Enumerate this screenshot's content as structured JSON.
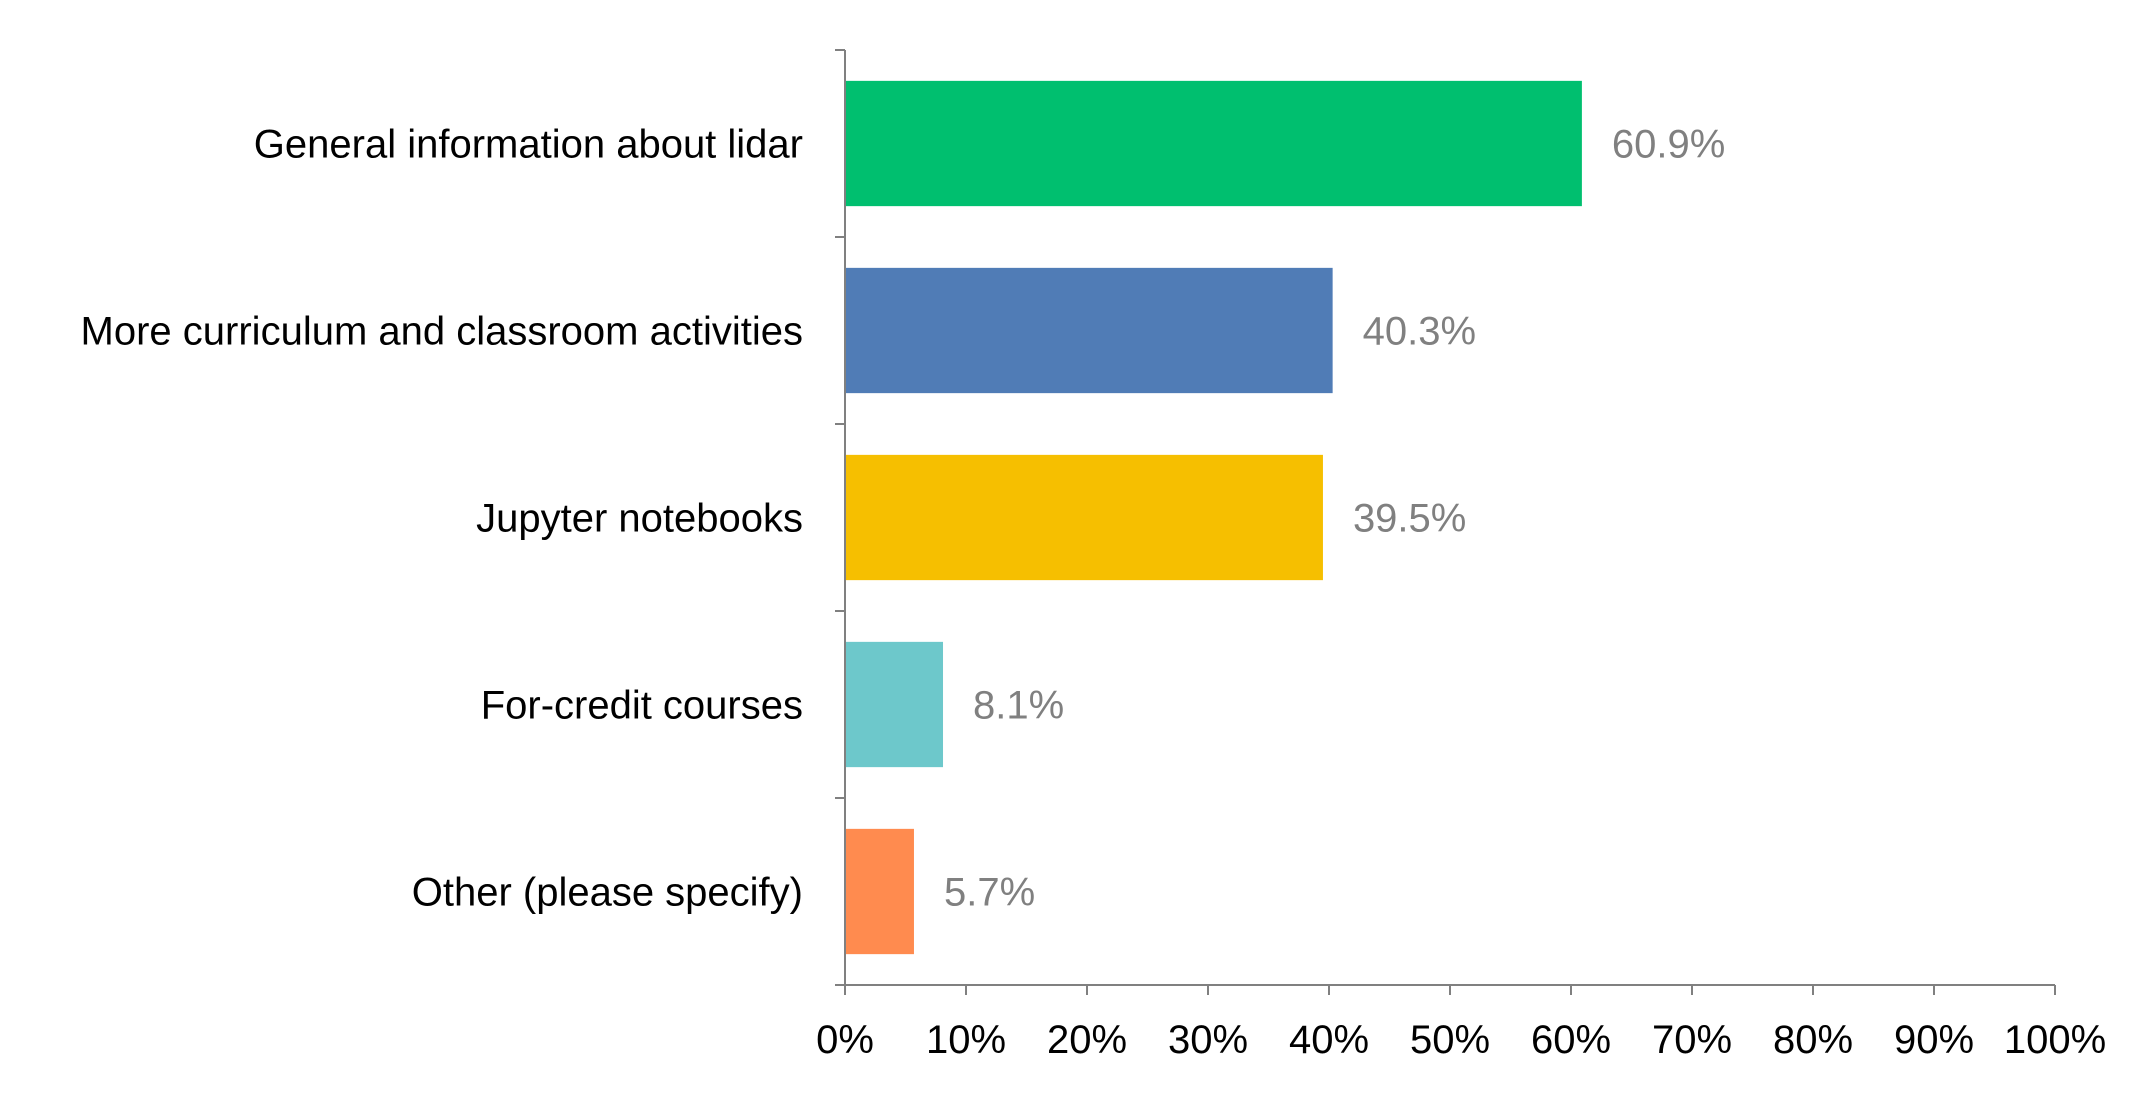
{
  "chart_data": {
    "type": "bar",
    "orientation": "horizontal",
    "categories": [
      "General information about lidar",
      "More curriculum and classroom activities",
      "Jupyter notebooks",
      "For-credit courses",
      "Other (please specify)"
    ],
    "values": [
      60.9,
      40.3,
      39.5,
      8.1,
      5.7
    ],
    "data_labels": [
      "60.9%",
      "40.3%",
      "39.5%",
      "8.1%",
      "5.7%"
    ],
    "colors": [
      "#00bf6f",
      "#507cb6",
      "#f6bf00",
      "#6dc8cb",
      "#ff8b4f"
    ],
    "xlim": [
      0,
      100
    ],
    "x_ticks": [
      0,
      10,
      20,
      30,
      40,
      50,
      60,
      70,
      80,
      90,
      100
    ],
    "x_tick_labels": [
      "0%",
      "10%",
      "20%",
      "30%",
      "40%",
      "50%",
      "60%",
      "70%",
      "80%",
      "90%",
      "100%"
    ],
    "grid": false,
    "legend": "none",
    "title": "",
    "xlabel": "",
    "ylabel": ""
  }
}
